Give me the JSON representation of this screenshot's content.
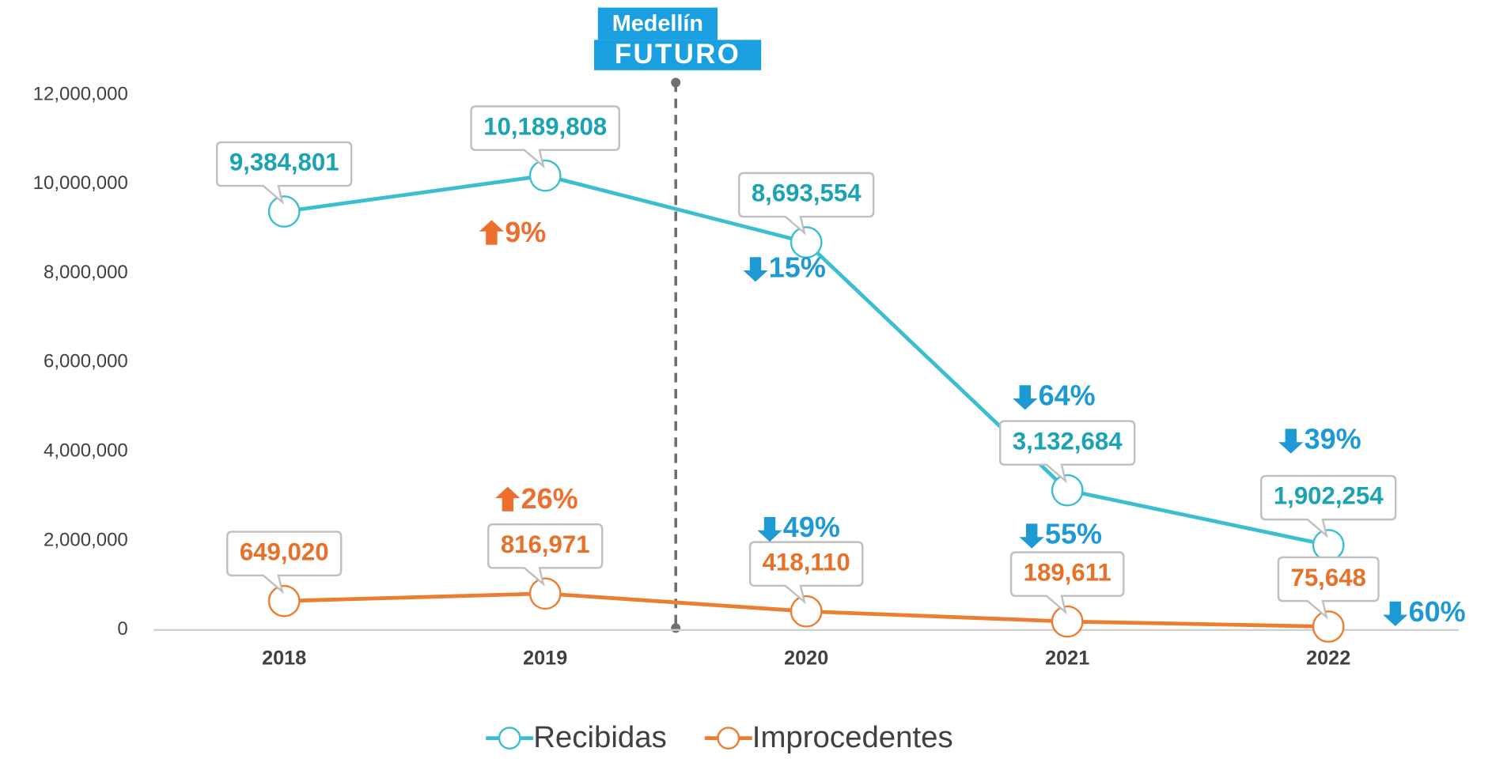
{
  "chart_data": {
    "type": "line",
    "logo": [
      "Medellín",
      "FUTURO"
    ],
    "categories": [
      "2018",
      "2019",
      "2020",
      "2021",
      "2022"
    ],
    "series": [
      {
        "name": "Recibidas",
        "color": "#3bbfd0",
        "label_color": "#1ba3b3",
        "values": [
          9384801,
          10189808,
          8693554,
          3132684,
          1902254
        ],
        "value_labels": [
          "9,384,801",
          "10,189,808",
          "8,693,554",
          "3,132,684",
          "1,902,254"
        ]
      },
      {
        "name": "Improcedentes",
        "color": "#ed7d31",
        "label_color": "#e8712a",
        "values": [
          649020,
          816971,
          418110,
          189611,
          75648
        ],
        "value_labels": [
          "649,020",
          "816,971",
          "418,110",
          "189,611",
          "75,648"
        ]
      }
    ],
    "ylim": [
      0,
      12000000
    ],
    "yticks": [
      0,
      {
        "value": 2000000,
        "label": "2,000,000"
      },
      {
        "value": 4000000,
        "label": "4,000,000"
      },
      {
        "value": 6000000,
        "label": "6,000,000"
      },
      {
        "value": 8000000,
        "label": "8,000,000"
      },
      {
        "value": 10000000,
        "label": "10,000,000"
      },
      {
        "value": 12000000,
        "label": "12,000,000"
      }
    ],
    "annotations": [
      {
        "text": "9%",
        "direction": "up",
        "color": "#ee6f2d"
      },
      {
        "text": "15%",
        "direction": "down",
        "color": "#1d9ad6"
      },
      {
        "text": "64%",
        "direction": "down",
        "color": "#1d9ad6"
      },
      {
        "text": "39%",
        "direction": "down",
        "color": "#1d9ad6"
      },
      {
        "text": "26%",
        "direction": "up",
        "color": "#ee6f2d"
      },
      {
        "text": "49%",
        "direction": "down",
        "color": "#1d9ad6"
      },
      {
        "text": "55%",
        "direction": "down",
        "color": "#1d9ad6"
      },
      {
        "text": "60%",
        "direction": "down",
        "color": "#1d9ad6"
      }
    ]
  }
}
